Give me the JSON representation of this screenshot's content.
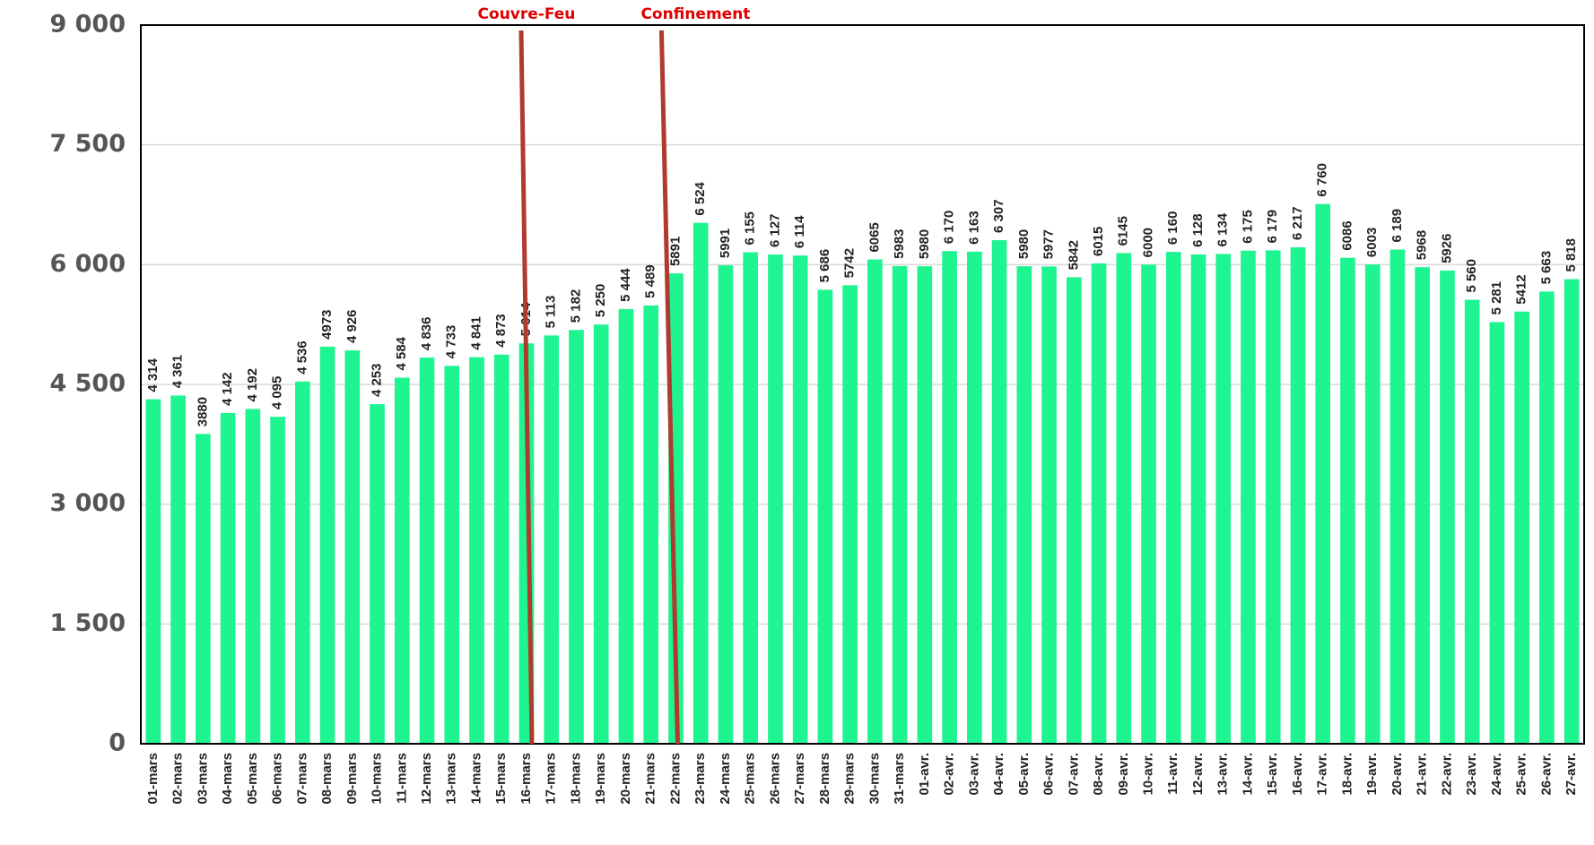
{
  "chart_data": {
    "type": "bar",
    "annotations": [
      "Couvre-Feu",
      "Confinement"
    ],
    "categories": [
      "01-mars",
      "02-mars",
      "03-mars",
      "04-mars",
      "05-mars",
      "06-mars",
      "07-mars",
      "08-mars",
      "09-mars",
      "10-mars",
      "11-mars",
      "12-mars",
      "13-mars",
      "14-mars",
      "15-mars",
      "16-mars",
      "17-mars",
      "18-mars",
      "19-mars",
      "20-mars",
      "21-mars",
      "22-mars",
      "23-mars",
      "24-mars",
      "25-mars",
      "26-mars",
      "27-mars",
      "28-mars",
      "29-mars",
      "30-mars",
      "31-mars",
      "01-avr.",
      "02-avr.",
      "03-avr.",
      "04-avr.",
      "05-avr.",
      "06-avr.",
      "07-avr.",
      "08-avr.",
      "09-avr.",
      "10-avr.",
      "11-avr.",
      "12-avr.",
      "13-avr.",
      "14-avr.",
      "15-avr.",
      "16-avr.",
      "17-avr.",
      "18-avr.",
      "19-avr.",
      "20-avr.",
      "21-avr.",
      "22-avr.",
      "23-avr.",
      "24-avr.",
      "25-avr.",
      "26-avr.",
      "27-avr."
    ],
    "values": [
      4314,
      4361,
      3880,
      4142,
      4192,
      4095,
      4536,
      4973,
      4926,
      4253,
      4584,
      4836,
      4733,
      4841,
      4873,
      5014,
      5113,
      5182,
      5250,
      5444,
      5489,
      5891,
      6524,
      5991,
      6155,
      6127,
      6114,
      5686,
      5742,
      6065,
      5983,
      5980,
      6170,
      6163,
      6307,
      5980,
      5977,
      5842,
      6015,
      6145,
      6000,
      6160,
      6128,
      6134,
      6175,
      6179,
      6217,
      6760,
      6086,
      6003,
      6189,
      5968,
      5926,
      5560,
      5281,
      5412,
      5663,
      5818
    ],
    "value_labels": [
      "4 314",
      "4 361",
      "3880",
      "4 142",
      "4 192",
      "4 095",
      "4 536",
      "4973",
      "4 926",
      "4 253",
      "4 584",
      "4 836",
      "4 733",
      "4 841",
      "4 873",
      "5 014",
      "5 113",
      "5 182",
      "5 250",
      "5 444",
      "5 489",
      "5891",
      "6 524",
      "5991",
      "6 155",
      "6 127",
      "6 114",
      "5 686",
      "5742",
      "6065",
      "5983",
      "5980",
      "6 170",
      "6 163",
      "6 307",
      "5980",
      "5977",
      "5842",
      "6015",
      "6145",
      "6000",
      "6 160",
      "6 128",
      "6 134",
      "6 175",
      "6 179",
      "6 217",
      "6 760",
      "6086",
      "6003",
      "6 189",
      "5968",
      "5926",
      "5 560",
      "5 281",
      "5412",
      "5 663",
      "5 818"
    ],
    "color": "#1ef590",
    "ylim": [
      0,
      9000
    ],
    "yticks": [
      0,
      {
        "value": 1500,
        "label": "1 500"
      },
      {
        "value": 3000,
        "label": "3 000"
      },
      {
        "value": 4500,
        "label": "4 500"
      },
      {
        "value": 6000,
        "label": "6 000"
      },
      {
        "value": 7500,
        "label": "7 500"
      },
      {
        "value": 9000,
        "label": "9 000"
      }
    ],
    "grid": true
  }
}
